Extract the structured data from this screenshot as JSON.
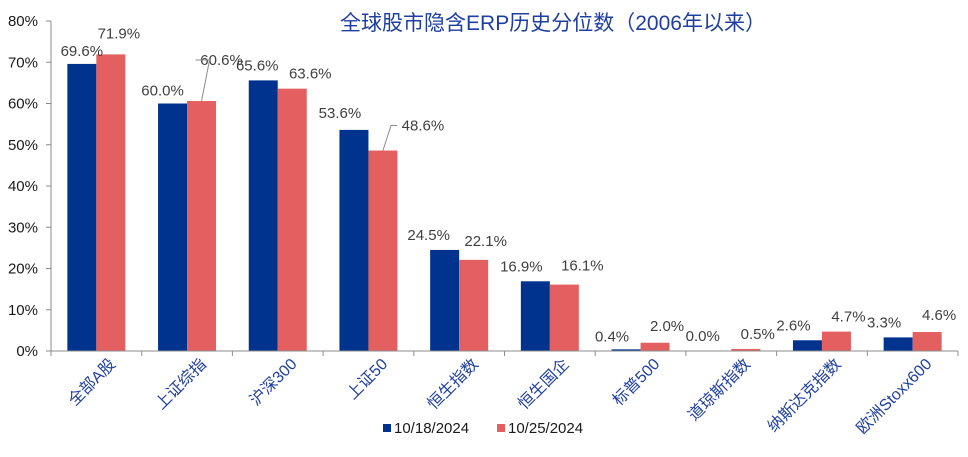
{
  "chart_data": {
    "type": "bar",
    "title": "全球股市隐含ERP历史分位数（2006年以来）",
    "xlabel": "",
    "ylabel": "",
    "ylim": [
      0,
      80
    ],
    "yticks": [
      "0%",
      "10%",
      "20%",
      "30%",
      "40%",
      "50%",
      "60%",
      "70%",
      "80%"
    ],
    "grid": false,
    "legend_position": "bottom",
    "categories": [
      "全部A股",
      "上证综指",
      "沪深300",
      "上证50",
      "恒生指数",
      "恒生国企",
      "标普500",
      "道琼斯指数",
      "纳斯达克指数",
      "欧洲Stoxx600"
    ],
    "series": [
      {
        "name": "10/18/2024",
        "color": "#00338d",
        "values": [
          69.6,
          60.0,
          65.6,
          53.6,
          24.5,
          16.9,
          0.4,
          0.0,
          2.6,
          3.3
        ],
        "labels": [
          "69.6%",
          "60.0%",
          "65.6%",
          "53.6%",
          "24.5%",
          "16.9%",
          "0.4%",
          "0.0%",
          "2.6%",
          "3.3%"
        ]
      },
      {
        "name": "10/25/2024",
        "color": "#e45f5f",
        "values": [
          71.9,
          60.6,
          63.6,
          48.6,
          22.1,
          16.1,
          2.0,
          0.5,
          4.7,
          4.6
        ],
        "labels": [
          "71.9%",
          "60.6%",
          "63.6%",
          "48.6%",
          "22.1%",
          "16.1%",
          "2.0%",
          "0.5%",
          "4.7%",
          "4.6%"
        ]
      }
    ]
  }
}
